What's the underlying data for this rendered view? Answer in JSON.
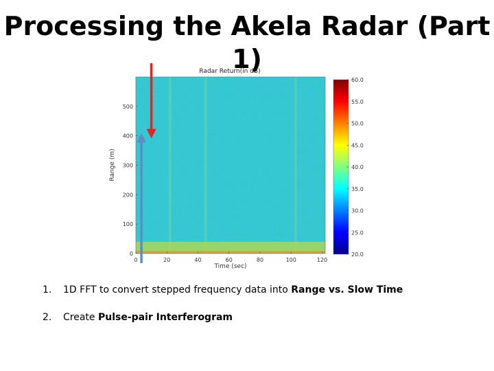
{
  "slide": {
    "title": "Processing the Akela Radar (Part 1)",
    "bullets": [
      {
        "num": "1.",
        "text": "1D FFT to convert stepped frequency data into ",
        "bold": "Range vs. Slow Time",
        "tail": ""
      },
      {
        "num": "2.",
        "text": "Create ",
        "bold": "Pulse-pair Interferogram",
        "tail": ""
      }
    ]
  },
  "chart_data": {
    "type": "heatmap",
    "title": "Radar Return(in dB)",
    "xlabel": "Time (sec)",
    "ylabel": "Range (m)",
    "xlim": [
      0,
      122
    ],
    "ylim": [
      0,
      600
    ],
    "xticks": [
      0,
      20,
      40,
      60,
      80,
      100,
      120
    ],
    "yticks": [
      0,
      100,
      200,
      300,
      400,
      500
    ],
    "colorbar": {
      "min": 20,
      "max": 60,
      "ticks": [
        20,
        25,
        30,
        35,
        40,
        45,
        50,
        55,
        60
      ]
    },
    "features": {
      "background_level_db": 33,
      "bright_vertical_bands_sec": [
        22,
        45,
        103
      ],
      "near_range_bright_band_m": [
        0,
        40
      ]
    },
    "annotations": [
      {
        "type": "arrow",
        "color": "#e8231e",
        "x_sec": 10,
        "direction": "down",
        "y_tip_m": 400
      },
      {
        "type": "arrow",
        "color": "#5b8ec9",
        "x_sec": 8,
        "direction": "up",
        "y_tip_m": 400
      }
    ]
  }
}
